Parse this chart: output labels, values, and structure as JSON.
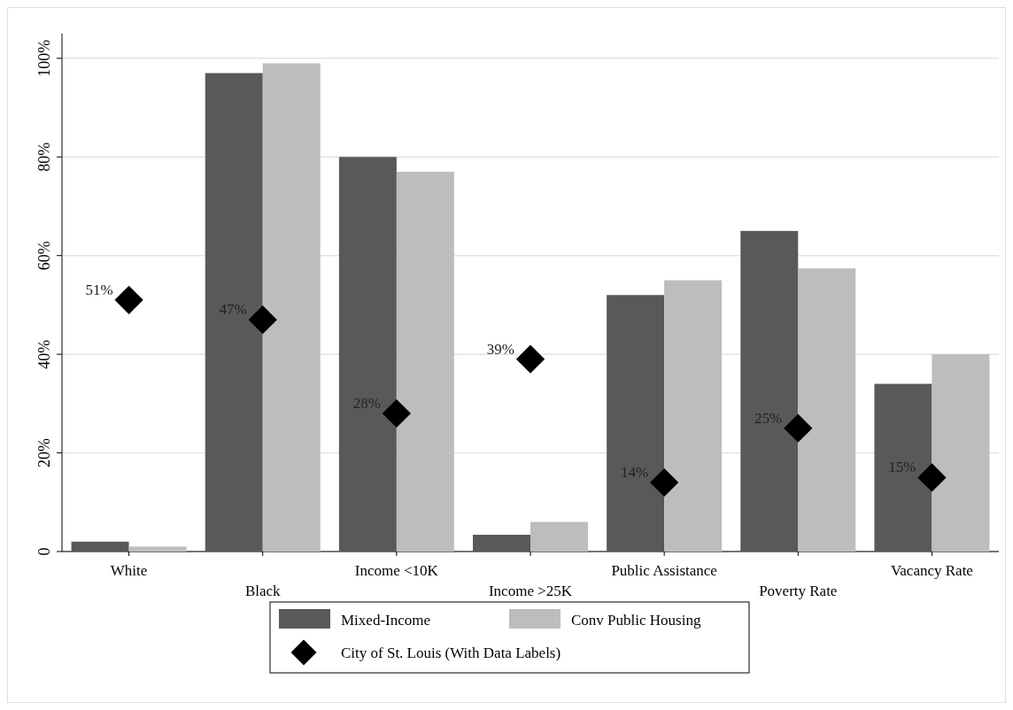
{
  "chart_data": {
    "type": "bar",
    "categories": [
      "White",
      "Black",
      "Income <10K",
      "Income >25K",
      "Public Assistance",
      "Poverty Rate",
      "Vacancy Rate"
    ],
    "series": [
      {
        "name": "Mixed-Income",
        "color": "#595959",
        "values": [
          2,
          97,
          80,
          3.4,
          52,
          65,
          34
        ]
      },
      {
        "name": "Conv Public Housing",
        "color": "#bdbdbd",
        "values": [
          1,
          99,
          77,
          6,
          55,
          57.4,
          40
        ]
      },
      {
        "name": "City of St. Louis (With Data Labels)",
        "type": "scatter",
        "marker": "diamond",
        "color": "#000000",
        "x": [
          "White",
          "Black",
          "Income <10K",
          "Income >25K",
          "Public Assistance",
          "Poverty Rate",
          "Vacancy Rate"
        ],
        "values": [
          51,
          47,
          28,
          39,
          14,
          25,
          15
        ],
        "value_labels": [
          "51%",
          "47%",
          "28%",
          "39%",
          "14%",
          "25%",
          "15%"
        ]
      }
    ],
    "ylim": [
      0,
      105
    ],
    "yticks": [
      {
        "value": 0,
        "label": "0"
      },
      {
        "value": 20,
        "label": "20%"
      },
      {
        "value": 40,
        "label": "40%"
      },
      {
        "value": 60,
        "label": "60%"
      },
      {
        "value": 80,
        "label": "80%"
      },
      {
        "value": 100,
        "label": "100%"
      }
    ],
    "grid": "y",
    "legend": "bottom"
  }
}
